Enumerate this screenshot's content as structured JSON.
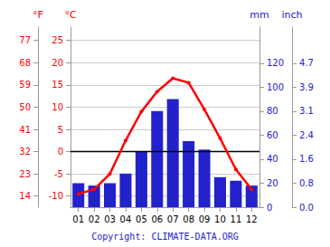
{
  "chart_data": {
    "type": "bar",
    "categories": [
      "01",
      "02",
      "03",
      "04",
      "05",
      "06",
      "07",
      "08",
      "09",
      "10",
      "11",
      "12"
    ],
    "series": [
      {
        "type": "bar",
        "axis": "y2",
        "color": "#2222cc",
        "values": [
          20,
          18,
          20,
          28,
          46,
          80,
          90,
          55,
          48,
          25,
          22,
          18
        ]
      },
      {
        "type": "line",
        "axis": "y",
        "color": "#ff0000",
        "marker": "circle",
        "values": [
          -9.5,
          -8.5,
          -5.0,
          2.5,
          9.0,
          13.5,
          16.5,
          15.5,
          9.5,
          3.0,
          -4.0,
          -8.5
        ]
      }
    ],
    "ylabel": "°C",
    "ylim": [
      -12.5,
      28
    ],
    "yticks": [
      -10,
      -5,
      0,
      5,
      10,
      15,
      20,
      25
    ],
    "y2label": "mm",
    "y2lim": [
      0,
      150
    ],
    "y2ticks": [
      0,
      20,
      40,
      60,
      80,
      100,
      120
    ],
    "y3label": "°F",
    "y3lim": [
      -12.5,
      28
    ],
    "y3ticks": [
      {
        "value": -10,
        "label": "14"
      },
      {
        "value": -5,
        "label": "23"
      },
      {
        "value": 0,
        "label": "32"
      },
      {
        "value": 5,
        "label": "41"
      },
      {
        "value": 10,
        "label": "50"
      },
      {
        "value": 15,
        "label": "59"
      },
      {
        "value": 20,
        "label": "68"
      },
      {
        "value": 25,
        "label": "77"
      }
    ],
    "y4label": "inch",
    "y4lim": [
      0,
      150
    ],
    "y4ticks": [
      {
        "value": 0,
        "label": "0.0"
      },
      {
        "value": 20,
        "label": "0.8"
      },
      {
        "value": 40,
        "label": "1.6"
      },
      {
        "value": 60,
        "label": "2.4"
      },
      {
        "value": 80,
        "label": "3.1"
      },
      {
        "value": 100,
        "label": "3.9"
      },
      {
        "value": 120,
        "label": "4.7"
      }
    ],
    "hlines": [
      0
    ],
    "annotation": "Copyright: CLIMATE-DATA.ORG",
    "grid": true
  }
}
